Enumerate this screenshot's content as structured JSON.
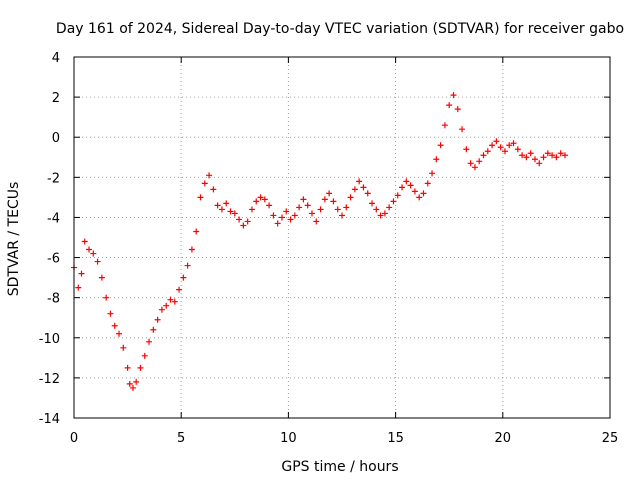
{
  "chart_data": {
    "type": "scatter",
    "title": "Day 161 of 2024, Sidereal Day-to-day VTEC variation (SDTVAR) for receiver gabo",
    "xlabel": "GPS time / hours",
    "ylabel": "SDTVAR / TECUs",
    "xlim": [
      0,
      25
    ],
    "ylim": [
      -14,
      4
    ],
    "xticks": [
      0,
      5,
      10,
      15,
      20,
      25
    ],
    "yticks": [
      -14,
      -12,
      -10,
      -8,
      -6,
      -4,
      -2,
      0,
      2,
      4
    ],
    "grid": true,
    "marker": "+",
    "color": "#ff0000",
    "series": [
      {
        "name": "",
        "x": [
          0.0,
          0.2,
          0.35,
          0.5,
          0.7,
          0.9,
          1.1,
          1.3,
          1.5,
          1.7,
          1.9,
          2.1,
          2.3,
          2.5,
          2.6,
          2.75,
          2.9,
          3.1,
          3.3,
          3.5,
          3.7,
          3.9,
          4.1,
          4.3,
          4.5,
          4.7,
          4.9,
          5.1,
          5.3,
          5.5,
          5.7,
          5.9,
          6.1,
          6.3,
          6.5,
          6.7,
          6.9,
          7.1,
          7.3,
          7.5,
          7.7,
          7.9,
          8.1,
          8.3,
          8.5,
          8.7,
          8.9,
          9.1,
          9.3,
          9.5,
          9.7,
          9.9,
          10.1,
          10.3,
          10.5,
          10.7,
          10.9,
          11.1,
          11.3,
          11.5,
          11.7,
          11.9,
          12.1,
          12.3,
          12.5,
          12.7,
          12.9,
          13.1,
          13.3,
          13.5,
          13.7,
          13.9,
          14.1,
          14.3,
          14.5,
          14.7,
          14.9,
          15.1,
          15.3,
          15.5,
          15.7,
          15.9,
          16.1,
          16.3,
          16.5,
          16.7,
          16.9,
          17.1,
          17.3,
          17.5,
          17.7,
          17.9,
          18.1,
          18.3,
          18.5,
          18.7,
          18.9,
          19.1,
          19.3,
          19.5,
          19.7,
          19.9,
          20.1,
          20.3,
          20.5,
          20.7,
          20.9,
          21.1,
          21.3,
          21.5,
          21.7,
          21.9,
          22.1,
          22.3,
          22.5,
          22.7,
          22.9
        ],
        "y": [
          -6.5,
          -7.5,
          -6.8,
          -5.2,
          -5.6,
          -5.8,
          -6.2,
          -7.0,
          -8.0,
          -8.8,
          -9.4,
          -9.8,
          -10.5,
          -11.5,
          -12.3,
          -12.5,
          -12.2,
          -11.5,
          -10.9,
          -10.2,
          -9.6,
          -9.1,
          -8.6,
          -8.4,
          -8.1,
          -8.2,
          -7.6,
          -7.0,
          -6.4,
          -5.6,
          -4.7,
          -3.0,
          -2.3,
          -1.9,
          -2.6,
          -3.4,
          -3.6,
          -3.3,
          -3.7,
          -3.8,
          -4.1,
          -4.4,
          -4.2,
          -3.6,
          -3.2,
          -3.0,
          -3.1,
          -3.4,
          -3.9,
          -4.3,
          -4.0,
          -3.7,
          -4.1,
          -3.9,
          -3.5,
          -3.1,
          -3.4,
          -3.8,
          -4.2,
          -3.6,
          -3.1,
          -2.8,
          -3.2,
          -3.6,
          -3.9,
          -3.5,
          -3.0,
          -2.6,
          -2.2,
          -2.5,
          -2.8,
          -3.3,
          -3.6,
          -3.9,
          -3.8,
          -3.5,
          -3.2,
          -2.9,
          -2.5,
          -2.2,
          -2.4,
          -2.7,
          -3.0,
          -2.8,
          -2.3,
          -1.8,
          -1.1,
          -0.4,
          0.6,
          1.6,
          2.1,
          1.4,
          0.4,
          -0.6,
          -1.3,
          -1.5,
          -1.2,
          -0.9,
          -0.7,
          -0.4,
          -0.2,
          -0.5,
          -0.7,
          -0.4,
          -0.3,
          -0.6,
          -0.9,
          -1.0,
          -0.8,
          -1.1,
          -1.3,
          -1.0,
          -0.8,
          -0.9,
          -1.0,
          -0.8,
          -0.9
        ]
      }
    ]
  }
}
